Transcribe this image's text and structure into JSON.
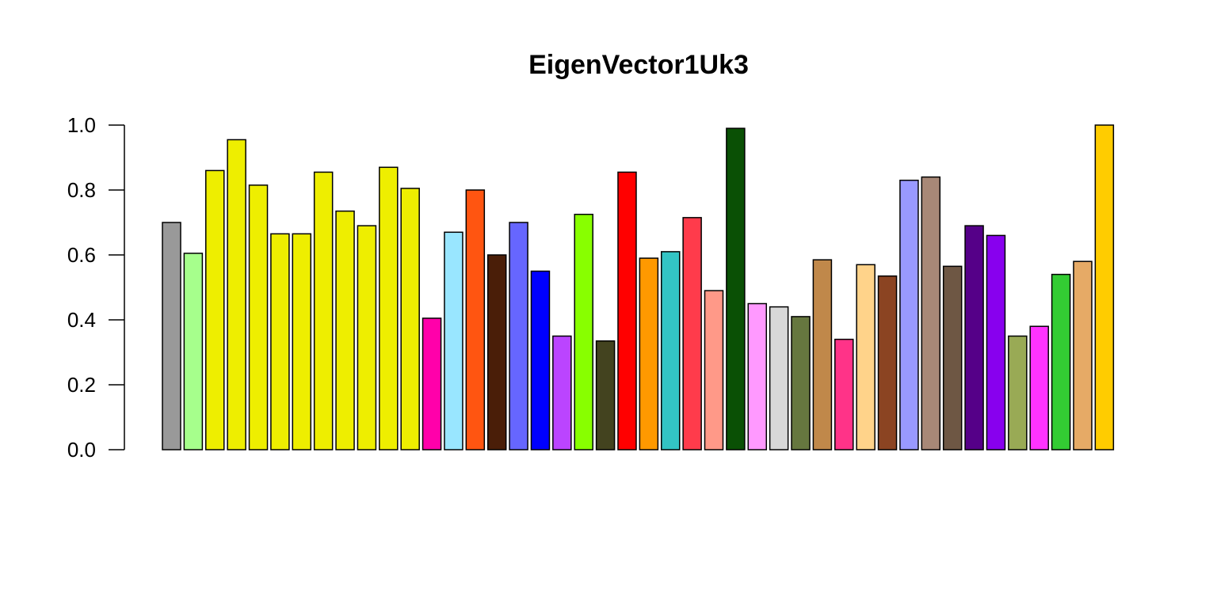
{
  "chart_data": {
    "type": "bar",
    "title": "EigenVector1Uk3",
    "xlabel": "",
    "ylabel": "",
    "ylim": [
      0,
      1.0
    ],
    "yticks": [
      "0.0",
      "0.2",
      "0.4",
      "0.6",
      "0.8",
      "1.0"
    ],
    "grid": false,
    "legend": "none",
    "values": [
      0.7,
      0.605,
      0.86,
      0.955,
      0.815,
      0.665,
      0.665,
      0.855,
      0.735,
      0.69,
      0.87,
      0.805,
      0.405,
      0.67,
      0.8,
      0.6,
      0.7,
      0.55,
      0.35,
      0.725,
      0.335,
      0.855,
      0.59,
      0.61,
      0.715,
      0.49,
      0.99,
      0.45,
      0.44,
      0.41,
      0.585,
      0.34,
      0.57,
      0.535,
      0.83,
      0.84,
      0.565,
      0.69,
      0.66,
      0.35,
      0.38,
      0.54,
      0.58,
      1.0
    ],
    "colors": [
      "#999999",
      "#a6ff8c",
      "#eeee00",
      "#eeee00",
      "#eeee00",
      "#eeee00",
      "#eeee00",
      "#eeee00",
      "#eeee00",
      "#eeee00",
      "#eeee00",
      "#eeee00",
      "#ff00aa",
      "#99e6ff",
      "#ff5511",
      "#4a1e08",
      "#6666ff",
      "#0000ff",
      "#bb44ff",
      "#88ff00",
      "#43431f",
      "#ff0000",
      "#ff9900",
      "#33c4c4",
      "#ff3b4b",
      "#ff9988",
      "#0a5005",
      "#ff99ff",
      "#d8d8d8",
      "#66773f",
      "#c0884a",
      "#ff3388",
      "#ffd38a",
      "#8b4422",
      "#9999ff",
      "#a88877",
      "#6e5744",
      "#550088",
      "#8800ee",
      "#99aa55",
      "#ff33ff",
      "#33cc33",
      "#e6aa66",
      "#ffcc00"
    ]
  }
}
